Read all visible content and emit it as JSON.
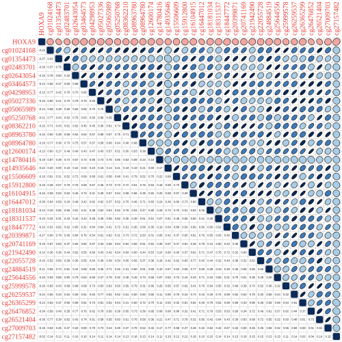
{
  "chart_data": {
    "type": "heatmap",
    "subtype": "correlogram",
    "lower": "number",
    "upper": "ellipse",
    "diagonal": "full-square",
    "labels": [
      "HOXA9",
      "cg01024168",
      "cg01354473",
      "cg02483701",
      "cg02643054",
      "cg03464573",
      "cg04298953",
      "cg05027336",
      "cg05065989",
      "cg05250768",
      "cg08362210",
      "cg08963780",
      "cg08964780",
      "cg12600174",
      "cg14780416",
      "cg14935646",
      "cg15506609",
      "cg15912800",
      "cg16104915",
      "cg16447012",
      "cg18181034",
      "cg18311537",
      "cg18447772",
      "cg20399871",
      "cg20741169",
      "cg21942490",
      "cg22055728",
      "cg24884519",
      "cg25644556",
      "cg25999578",
      "cg26259537",
      "cg26365299",
      "cg26476852",
      "cg26521404",
      "cg27009703",
      "cg27157482"
    ],
    "first_column": [
      0,
      -0.22,
      -0.37,
      -0.29,
      -0.15,
      -0.12,
      -0.13,
      -0.15,
      -0.14,
      -0.21,
      -0.22,
      -0.16,
      -0.18,
      -0.13,
      -0.19,
      -0.22,
      -0.19,
      -0.19,
      -0.16,
      -0.39,
      -0.14,
      -0.15,
      -0.1,
      -0.27,
      -0.19,
      -0.14,
      -0.15,
      -0.11,
      -0.16,
      -0.26,
      -0.24,
      -0.14,
      -0.34,
      -0.36,
      -0.15,
      -0.02
    ],
    "rows_sample": {
      "cg02483701": [
        -0.29,
        0.37
      ],
      "cg02643054": [
        -0.15,
        0.78,
        0.5
      ],
      "cg03464573": [
        -0.12,
        0.65,
        0.37,
        0.6
      ],
      "cg04298953": [
        -0.13,
        0.77,
        0.42,
        0.79,
        0.7
      ],
      "cg05027336": [
        -0.15,
        0.8,
        0.41,
        0.7,
        0.78,
        0.75
      ],
      "cg05065989": [
        -0.14,
        0.68,
        0.38,
        0.56,
        0.6,
        0.66,
        0.7
      ],
      "cg05250768": [
        -0.21,
        0.77,
        0.43,
        0.63,
        0.78,
        0.63,
        0.6,
        0.68
      ],
      "cg08362210": [
        -0.22,
        0.71,
        0.43,
        0.61,
        0.62,
        0.45,
        0.45,
        0.36,
        0.61
      ],
      "cg08963780": [
        -0.16,
        0.8,
        0.38,
        0.59,
        0.64,
        0.64,
        0.57,
        0.68,
        0.67,
        0.75
      ],
      "cg08964780": [
        -0.18,
        0.77,
        0.38,
        0.73,
        0.75,
        0.57,
        0.57,
        0.58,
        0.66,
        0.64,
        0.48
      ],
      "cg12600174": [
        -0.13,
        0.6,
        0.17,
        0.49,
        0.49,
        0.43,
        0.47,
        0.43,
        0.57,
        0.51,
        0.5
      ],
      "cg14780416": [
        -0.19,
        0.87,
        0.39,
        0.74,
        0.67,
        0.74,
        0.85,
        0.73,
        0.75,
        0.65,
        0.63,
        0.69
      ],
      "cg14935646": [
        -0.22,
        0.2,
        0.0,
        0.19,
        0.22,
        0.02,
        0.23,
        0.16,
        0.14,
        0.21,
        0.19,
        0.19,
        0.21
      ]
    },
    "last_row": [
      -0.02,
      0.14,
      0.12,
      0.11,
      0.16,
      0.16,
      0.14,
      0.11,
      0.14,
      0.14,
      0.13,
      0.16,
      0.13,
      0.14,
      0.11,
      0.16,
      0.12,
      0.12,
      0.16,
      0.1,
      0.15,
      0.14,
      0.14,
      0.13,
      0.16,
      0.15,
      0.15,
      0.13,
      0.15,
      0.11,
      0.14,
      0.02,
      0.04,
      0.14,
      0.15
    ],
    "value_range": [
      -1,
      1
    ],
    "colors": {
      "positive_dark": "#0b2a57",
      "positive_mid": "#3f7ab8",
      "positive_light": "#a9cde6",
      "negative": "#f2a6a0",
      "label": "#e8403a",
      "frame": "#c9c9c9"
    }
  }
}
